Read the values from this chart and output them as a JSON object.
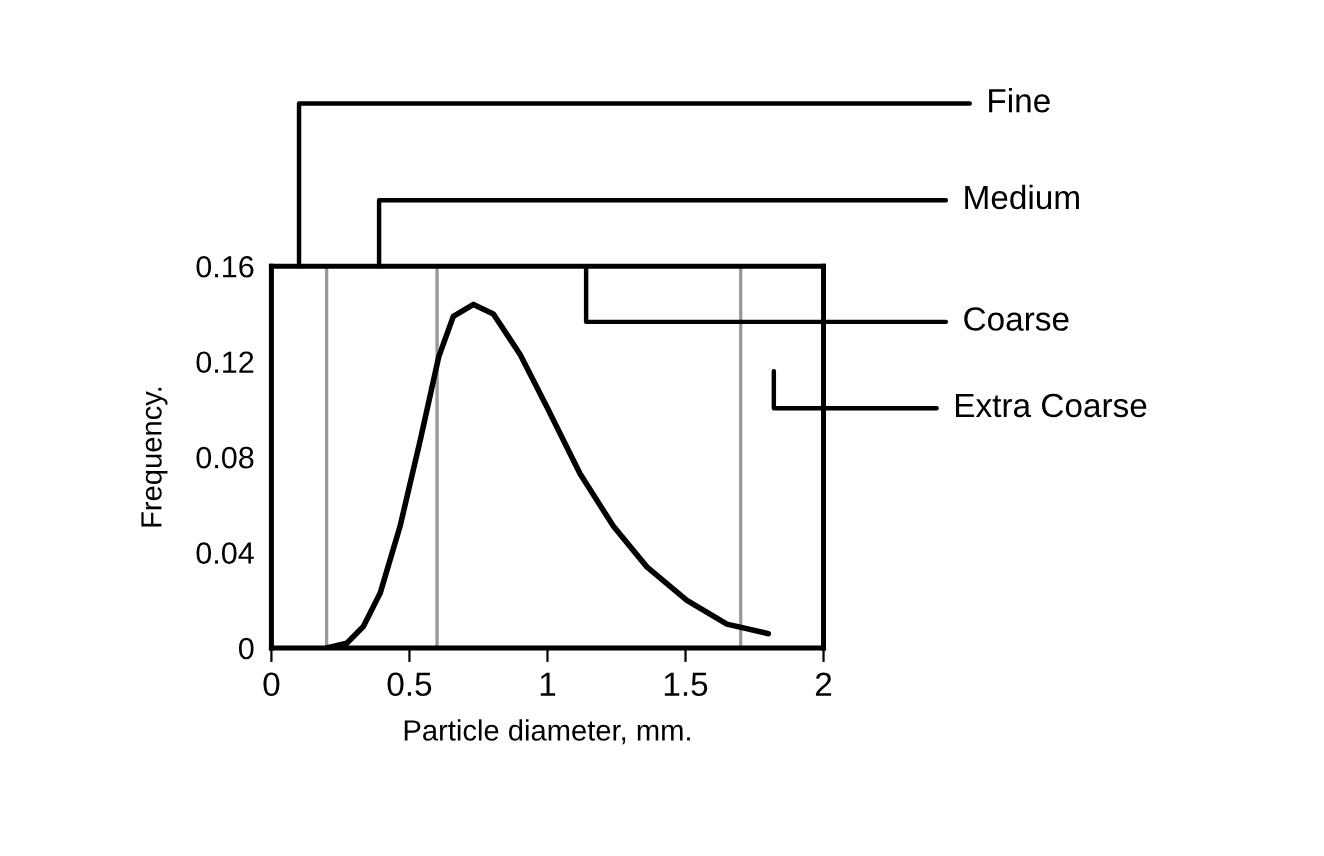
{
  "chart_data": {
    "type": "line",
    "xlabel": "Particle diameter, mm.",
    "ylabel": "Frequency.",
    "x": [
      0.2,
      0.273,
      0.333,
      0.394,
      0.466,
      0.539,
      0.606,
      0.659,
      0.732,
      0.804,
      0.901,
      0.998,
      1.118,
      1.239,
      1.36,
      1.505,
      1.65,
      1.8
    ],
    "series": [
      {
        "color": "#000000",
        "values": [
          0,
          0.002,
          0.009,
          0.023,
          0.051,
          0.087,
          0.122,
          0.139,
          0.144,
          0.14,
          0.123,
          0.101,
          0.073,
          0.051,
          0.034,
          0.02,
          0.01,
          0.006
        ]
      }
    ],
    "xlim": [
      0,
      2
    ],
    "ylim": [
      0,
      0.16
    ],
    "xticks": [
      0,
      0.5,
      1,
      1.5,
      2
    ],
    "yticks": [
      0,
      0.04,
      0.08,
      0.12,
      0.16
    ],
    "grid": false,
    "marker": "none",
    "line_style": "solid",
    "ref_lines": [
      {
        "axis": "x",
        "value": 0.2,
        "color": "#999999"
      },
      {
        "axis": "x",
        "value": 0.6,
        "color": "#999999"
      },
      {
        "axis": "x",
        "value": 1.7,
        "color": "#999999"
      }
    ],
    "annotations": [
      "Fine",
      "Medium",
      "Coarse",
      "Extra Coarse"
    ]
  }
}
